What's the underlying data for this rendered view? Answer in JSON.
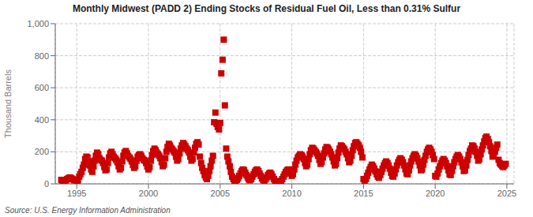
{
  "chart_data": {
    "type": "scatter",
    "title": "Monthly Midwest (PADD 2) Ending Stocks of Residual Fuel Oil, Less than 0.31% Sulfur",
    "y_label": "Thousand Barrels",
    "annotations": [
      "Source: U.S. Energy Information Administration"
    ],
    "color": "#cc0000",
    "marker": "square",
    "grid": true,
    "xlim": [
      1993.5,
      2025.5
    ],
    "xticks": [
      1995,
      2000,
      2005,
      2010,
      2015,
      2020,
      2025
    ],
    "ylim": [
      0,
      1000
    ],
    "yticks": [
      0,
      200,
      400,
      600,
      800,
      {
        "value": 1000,
        "label": "1,000"
      }
    ],
    "x": [
      1993.92,
      1994.0,
      1994.08,
      1994.17,
      1994.25,
      1994.33,
      1994.42,
      1994.5,
      1994.58,
      1994.67,
      1994.75,
      1994.83,
      1995.0,
      1995.08,
      1995.17,
      1995.25,
      1995.33,
      1995.42,
      1995.5,
      1995.58,
      1995.67,
      1995.75,
      1995.83,
      1995.92,
      1996.0,
      1996.08,
      1996.17,
      1996.25,
      1996.33,
      1996.42,
      1996.5,
      1996.58,
      1996.67,
      1996.75,
      1996.83,
      1996.92,
      1997.0,
      1997.08,
      1997.17,
      1997.25,
      1997.33,
      1997.42,
      1997.5,
      1997.58,
      1997.67,
      1997.75,
      1997.83,
      1997.92,
      1998.0,
      1998.08,
      1998.17,
      1998.25,
      1998.33,
      1998.42,
      1998.5,
      1998.58,
      1998.67,
      1998.75,
      1998.83,
      1998.92,
      1999.0,
      1999.08,
      1999.17,
      1999.25,
      1999.33,
      1999.42,
      1999.5,
      1999.58,
      1999.67,
      1999.75,
      1999.83,
      1999.92,
      2000.0,
      2000.08,
      2000.17,
      2000.25,
      2000.33,
      2000.42,
      2000.5,
      2000.58,
      2000.67,
      2000.75,
      2000.83,
      2000.92,
      2001.0,
      2001.08,
      2001.17,
      2001.25,
      2001.33,
      2001.42,
      2001.5,
      2001.58,
      2001.67,
      2001.75,
      2001.83,
      2001.92,
      2002.0,
      2002.08,
      2002.17,
      2002.25,
      2002.33,
      2002.42,
      2002.5,
      2002.58,
      2002.67,
      2002.75,
      2002.83,
      2002.92,
      2003.0,
      2003.08,
      2003.17,
      2003.25,
      2003.33,
      2003.42,
      2003.5,
      2003.58,
      2003.67,
      2003.75,
      2003.83,
      2003.92,
      2004.0,
      2004.08,
      2004.17,
      2004.25,
      2004.33,
      2004.42,
      2004.5,
      2004.58,
      2004.67,
      2004.75,
      2004.83,
      2004.92,
      2005.0,
      2005.08,
      2005.17,
      2005.25,
      2005.33,
      2005.42,
      2005.5,
      2005.58,
      2005.67,
      2005.75,
      2005.83,
      2005.92,
      2006.0,
      2006.08,
      2006.17,
      2006.25,
      2006.33,
      2006.42,
      2006.5,
      2006.58,
      2006.67,
      2006.75,
      2006.83,
      2006.92,
      2007.0,
      2007.08,
      2007.17,
      2007.25,
      2007.33,
      2007.42,
      2007.5,
      2007.58,
      2007.67,
      2007.75,
      2007.83,
      2007.92,
      2008.0,
      2008.08,
      2008.17,
      2008.25,
      2008.33,
      2008.42,
      2008.5,
      2008.58,
      2008.67,
      2008.75,
      2008.83,
      2008.92,
      2009.0,
      2009.08,
      2009.17,
      2009.25,
      2009.33,
      2009.42,
      2009.5,
      2009.58,
      2009.67,
      2009.75,
      2009.83,
      2009.92,
      2010.0,
      2010.08,
      2010.17,
      2010.25,
      2010.33,
      2010.42,
      2010.5,
      2010.58,
      2010.67,
      2010.75,
      2010.83,
      2010.92,
      2011.0,
      2011.08,
      2011.17,
      2011.25,
      2011.33,
      2011.42,
      2011.5,
      2011.58,
      2011.67,
      2011.75,
      2011.83,
      2011.92,
      2012.0,
      2012.08,
      2012.17,
      2012.25,
      2012.33,
      2012.42,
      2012.5,
      2012.58,
      2012.67,
      2012.75,
      2012.83,
      2012.92,
      2013.0,
      2013.08,
      2013.17,
      2013.25,
      2013.33,
      2013.42,
      2013.5,
      2013.58,
      2013.67,
      2013.75,
      2013.83,
      2013.92,
      2014.0,
      2014.08,
      2014.17,
      2014.25,
      2014.33,
      2014.42,
      2014.5,
      2014.58,
      2014.67,
      2014.75,
      2014.83,
      2014.92,
      2015.0,
      2015.08,
      2015.17,
      2015.25,
      2015.33,
      2015.42,
      2015.5,
      2015.58,
      2015.67,
      2015.75,
      2015.83,
      2015.92,
      2016.0,
      2016.08,
      2016.17,
      2016.25,
      2016.33,
      2016.42,
      2016.5,
      2016.58,
      2016.67,
      2016.75,
      2016.83,
      2016.92,
      2017.0,
      2017.08,
      2017.17,
      2017.25,
      2017.33,
      2017.42,
      2017.5,
      2017.58,
      2017.67,
      2017.75,
      2017.83,
      2017.92,
      2018.0,
      2018.08,
      2018.17,
      2018.25,
      2018.33,
      2018.42,
      2018.5,
      2018.58,
      2018.67,
      2018.75,
      2018.83,
      2018.92,
      2019.0,
      2019.08,
      2019.17,
      2019.25,
      2019.33,
      2019.42,
      2019.5,
      2019.58,
      2019.67,
      2019.75,
      2019.83,
      2019.92,
      2020.0,
      2020.08,
      2020.17,
      2020.25,
      2020.33,
      2020.42,
      2020.5,
      2020.58,
      2020.67,
      2020.75,
      2020.83,
      2020.92,
      2021.0,
      2021.08,
      2021.17,
      2021.25,
      2021.33,
      2021.42,
      2021.5,
      2021.58,
      2021.67,
      2021.75,
      2021.83,
      2021.92,
      2022.0,
      2022.08,
      2022.17,
      2022.25,
      2022.33,
      2022.42,
      2022.5,
      2022.58,
      2022.67,
      2022.75,
      2022.83,
      2022.92,
      2023.0,
      2023.08,
      2023.17,
      2023.25,
      2023.33,
      2023.42,
      2023.5,
      2023.58,
      2023.67,
      2023.75,
      2023.83,
      2023.92,
      2024.0,
      2024.08,
      2024.17,
      2024.25,
      2024.33,
      2024.42,
      2024.5,
      2024.58,
      2024.67,
      2024.75,
      2024.83,
      2024.92
    ],
    "values": [
      25,
      20,
      15,
      18,
      22,
      30,
      35,
      40,
      38,
      32,
      28,
      22,
      18,
      22,
      45,
      60,
      75,
      100,
      120,
      155,
      170,
      165,
      140,
      115,
      90,
      75,
      110,
      145,
      175,
      195,
      185,
      160,
      150,
      145,
      130,
      105,
      85,
      90,
      130,
      165,
      190,
      200,
      185,
      170,
      160,
      150,
      135,
      110,
      90,
      100,
      140,
      175,
      195,
      205,
      190,
      175,
      165,
      155,
      140,
      118,
      100,
      110,
      145,
      170,
      180,
      185,
      175,
      160,
      150,
      145,
      130,
      108,
      90,
      105,
      145,
      180,
      205,
      220,
      210,
      195,
      185,
      175,
      160,
      135,
      110,
      120,
      160,
      200,
      230,
      250,
      240,
      225,
      215,
      205,
      195,
      170,
      145,
      155,
      190,
      220,
      240,
      255,
      245,
      235,
      220,
      210,
      195,
      170,
      145,
      155,
      195,
      225,
      250,
      260,
      245,
      170,
      130,
      100,
      80,
      55,
      40,
      30,
      50,
      80,
      110,
      145,
      175,
      385,
      445,
      375,
      355,
      340,
      380,
      690,
      775,
      900,
      490,
      220,
      170,
      140,
      110,
      75,
      45,
      30,
      20,
      18,
      25,
      35,
      50,
      65,
      80,
      90,
      85,
      70,
      55,
      40,
      28,
      22,
      30,
      45,
      60,
      75,
      85,
      90,
      80,
      65,
      50,
      35,
      25,
      20,
      28,
      40,
      55,
      65,
      70,
      60,
      45,
      30,
      18,
      10,
      8,
      6,
      10,
      18,
      30,
      45,
      60,
      75,
      85,
      90,
      80,
      65,
      50,
      60,
      90,
      120,
      145,
      165,
      175,
      185,
      180,
      170,
      155,
      130,
      110,
      120,
      155,
      185,
      210,
      225,
      220,
      210,
      200,
      190,
      175,
      150,
      125,
      135,
      165,
      190,
      215,
      230,
      225,
      215,
      200,
      185,
      165,
      140,
      115,
      125,
      160,
      195,
      220,
      240,
      235,
      225,
      215,
      200,
      185,
      160,
      135,
      145,
      175,
      210,
      235,
      255,
      260,
      250,
      240,
      225,
      200,
      165,
      30,
      20,
      30,
      50,
      70,
      90,
      105,
      120,
      110,
      95,
      78,
      60,
      45,
      38,
      55,
      75,
      95,
      115,
      130,
      140,
      130,
      115,
      95,
      70,
      50,
      45,
      65,
      90,
      115,
      135,
      150,
      160,
      150,
      135,
      115,
      90,
      65,
      60,
      85,
      115,
      140,
      160,
      175,
      185,
      175,
      160,
      140,
      115,
      85,
      90,
      120,
      150,
      175,
      200,
      215,
      225,
      215,
      200,
      180,
      155,
      50,
      45,
      65,
      90,
      110,
      130,
      145,
      155,
      145,
      130,
      110,
      85,
      60,
      55,
      80,
      110,
      135,
      155,
      170,
      180,
      170,
      155,
      135,
      110,
      80,
      85,
      115,
      150,
      180,
      205,
      220,
      240,
      235,
      220,
      200,
      175,
      145,
      155,
      185,
      215,
      240,
      265,
      285,
      295,
      280,
      260,
      235,
      205,
      170,
      175,
      200,
      225,
      245,
      150,
      130,
      120,
      112,
      105,
      115,
      125
    ]
  }
}
